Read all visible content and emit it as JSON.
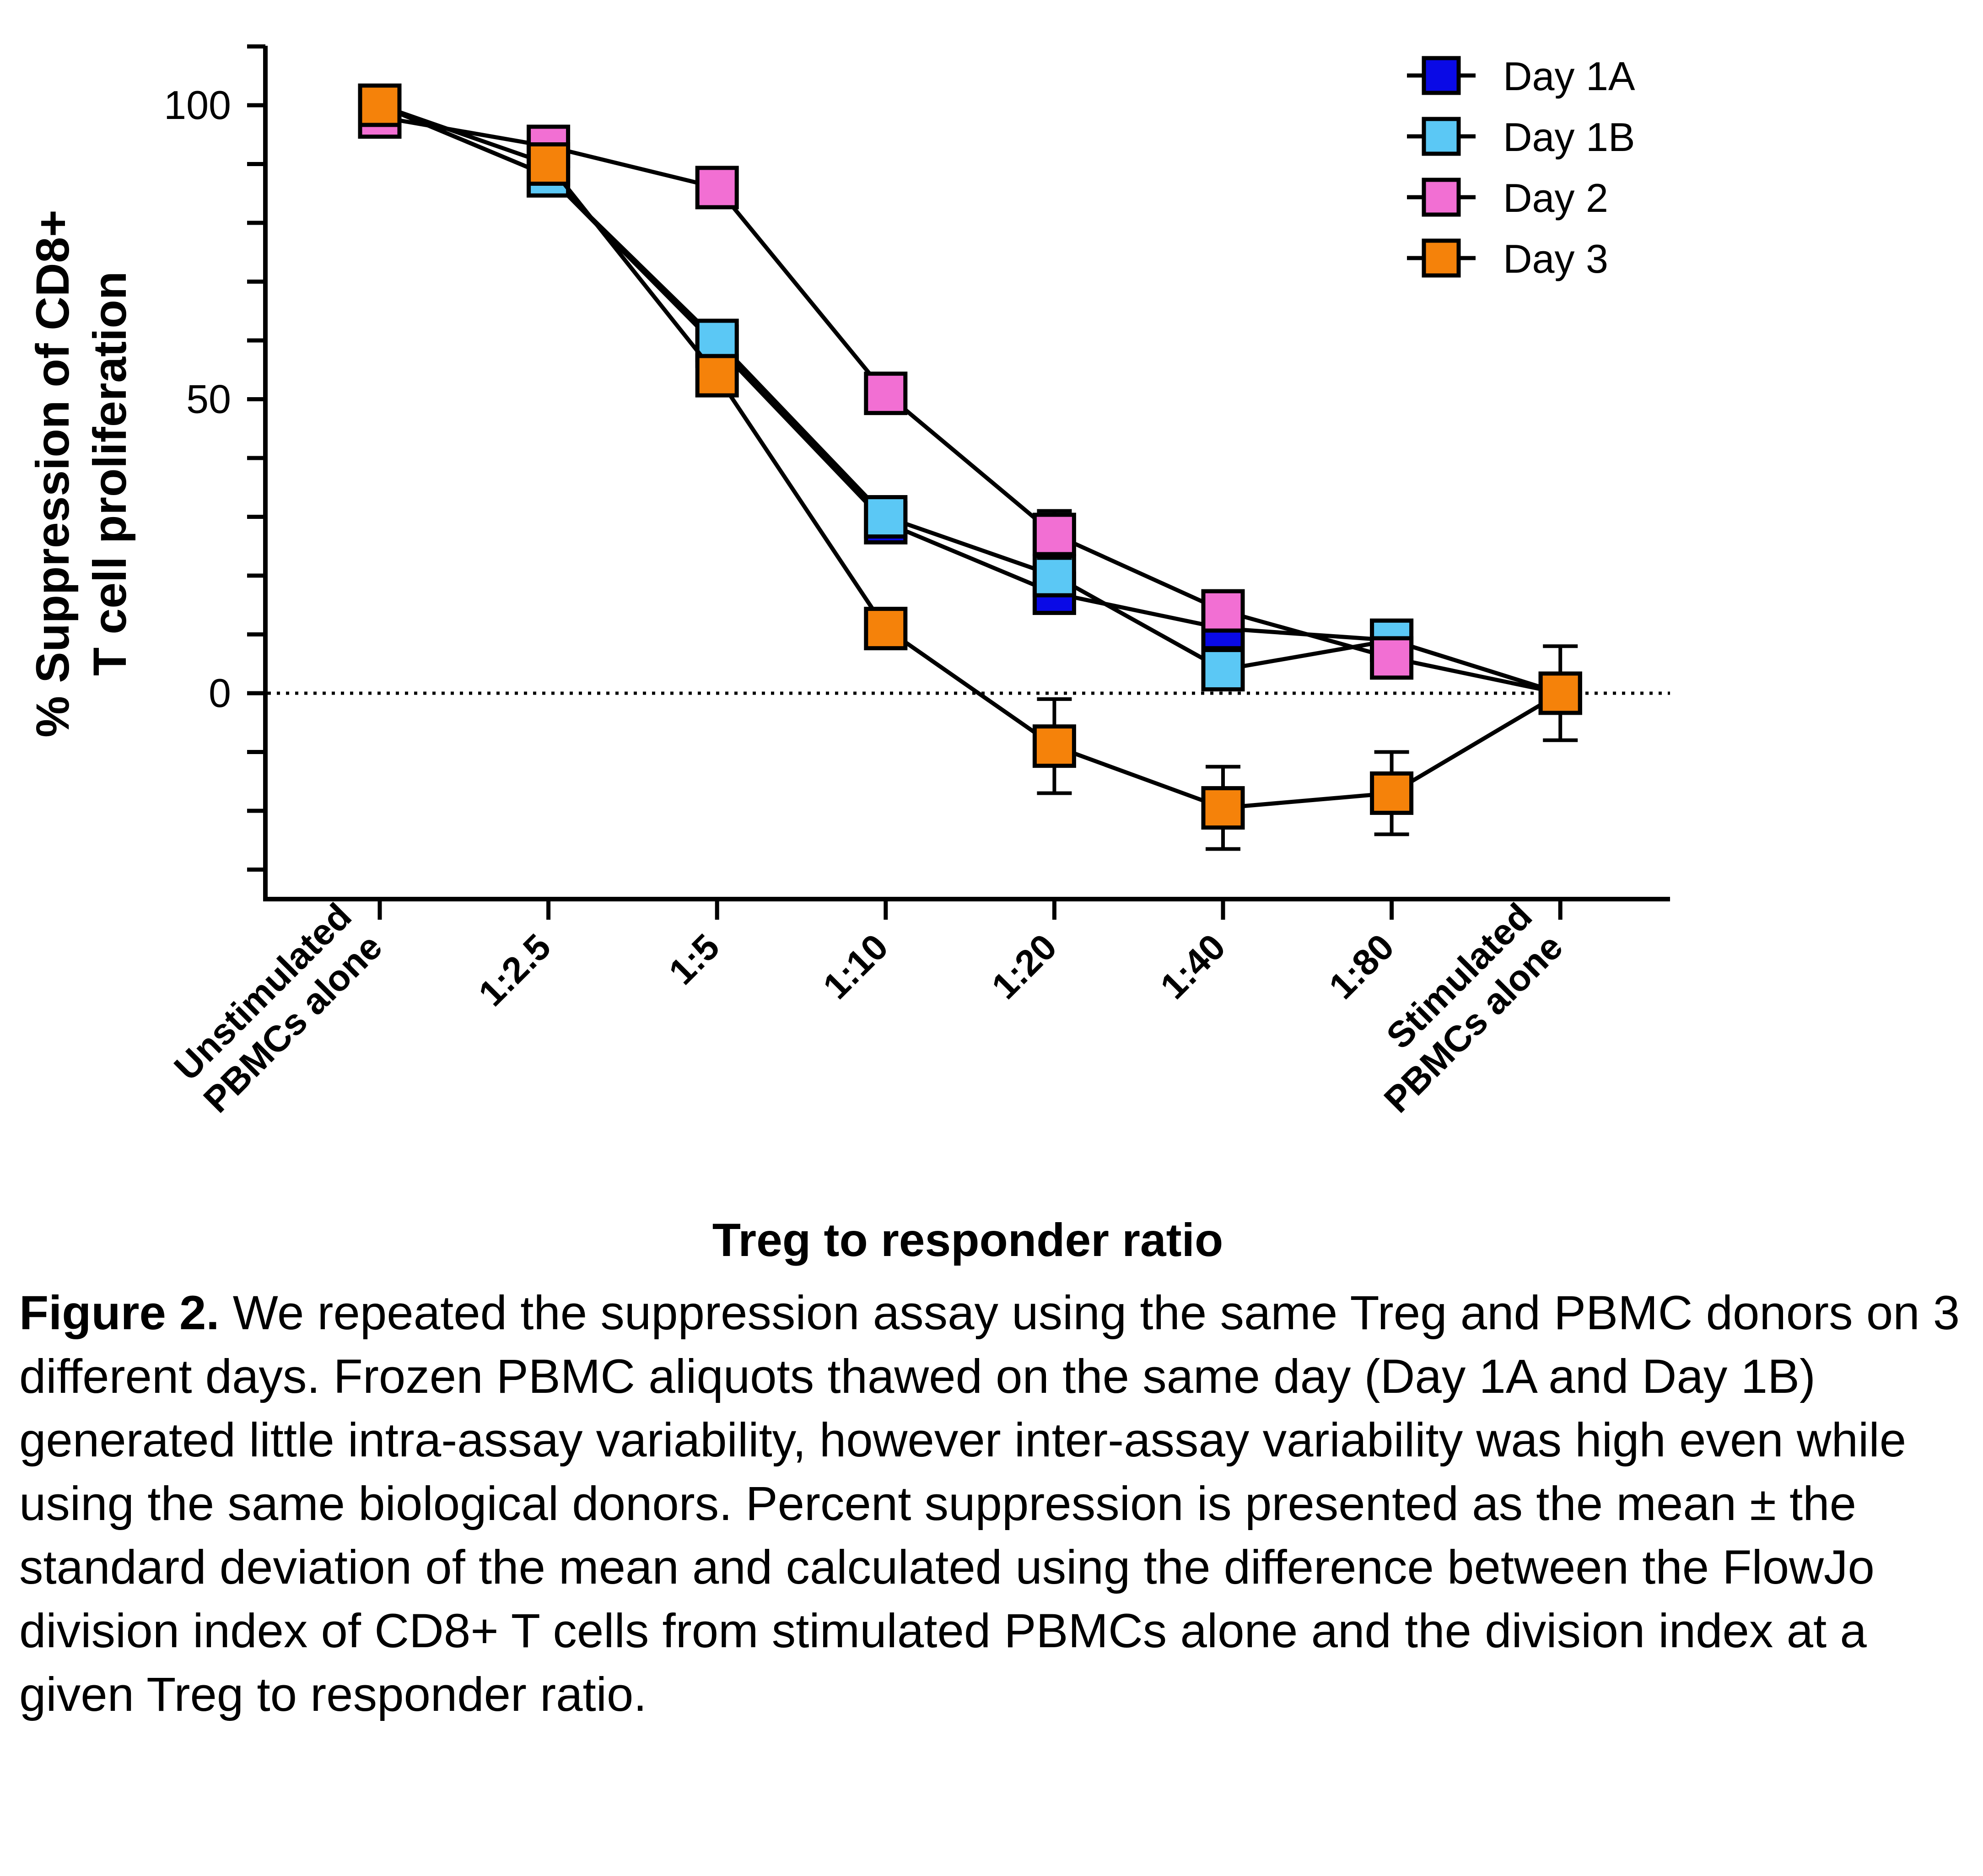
{
  "chart_data": {
    "type": "line",
    "xlabel": "Treg to responder ratio",
    "ylabel_lines": [
      "% Suppression of CD8+",
      "T cell proliferation"
    ],
    "ylim": [
      -35,
      110
    ],
    "yticks_labeled": [
      0,
      50,
      100
    ],
    "yticks_minor": [
      -30,
      -20,
      -10,
      10,
      20,
      30,
      40,
      60,
      70,
      80,
      90,
      110
    ],
    "reference_line": {
      "y": 0,
      "style": "dotted"
    },
    "legend_position": "top-right",
    "categories": [
      [
        "Unstimulated",
        "PBMCs alone"
      ],
      [
        "1:2.5"
      ],
      [
        "1:5"
      ],
      [
        "1:10"
      ],
      [
        "1:20"
      ],
      [
        "1:40"
      ],
      [
        "1:80"
      ],
      [
        "Stimulated",
        "PBMCs alone"
      ]
    ],
    "series": [
      {
        "name": "Day 1A",
        "color": "#0a0ae6",
        "values": [
          100,
          88,
          59,
          29,
          17,
          11,
          9,
          0
        ],
        "errors": [
          0,
          0,
          1,
          1,
          1.5,
          1.5,
          1,
          1
        ]
      },
      {
        "name": "Day 1B",
        "color": "#5bc8f5",
        "values": [
          100,
          88,
          60,
          30,
          20,
          4,
          9,
          0
        ],
        "errors": [
          0,
          0,
          1,
          1,
          1.5,
          1,
          1,
          1
        ]
      },
      {
        "name": "Day 2",
        "color": "#f26fd3",
        "values": [
          98,
          93,
          86,
          51,
          27,
          14,
          6,
          0
        ],
        "errors": [
          0,
          0,
          1,
          1,
          4,
          3,
          1,
          1
        ]
      },
      {
        "name": "Day 3",
        "color": "#f5820a",
        "values": [
          100,
          90,
          54,
          11,
          -9,
          -19.5,
          -17,
          0
        ],
        "errors": [
          0,
          0,
          1,
          1,
          8,
          7,
          7,
          8
        ]
      }
    ]
  },
  "caption": {
    "lead": "Figure 2.",
    "text": " We repeated the suppression assay using the same Treg and PBMC donors on 3 different days. Frozen PBMC aliquots thawed on the same day (Day 1A and Day 1B) generated little intra-assay variability, however inter-assay variability was high even while using the same biological donors. Percent suppression is presented as the mean ± the standard deviation of the mean and calculated using the difference between the FlowJo division index of CD8+ T cells from stimulated PBMCs alone and the division index at a given Treg to responder ratio."
  }
}
